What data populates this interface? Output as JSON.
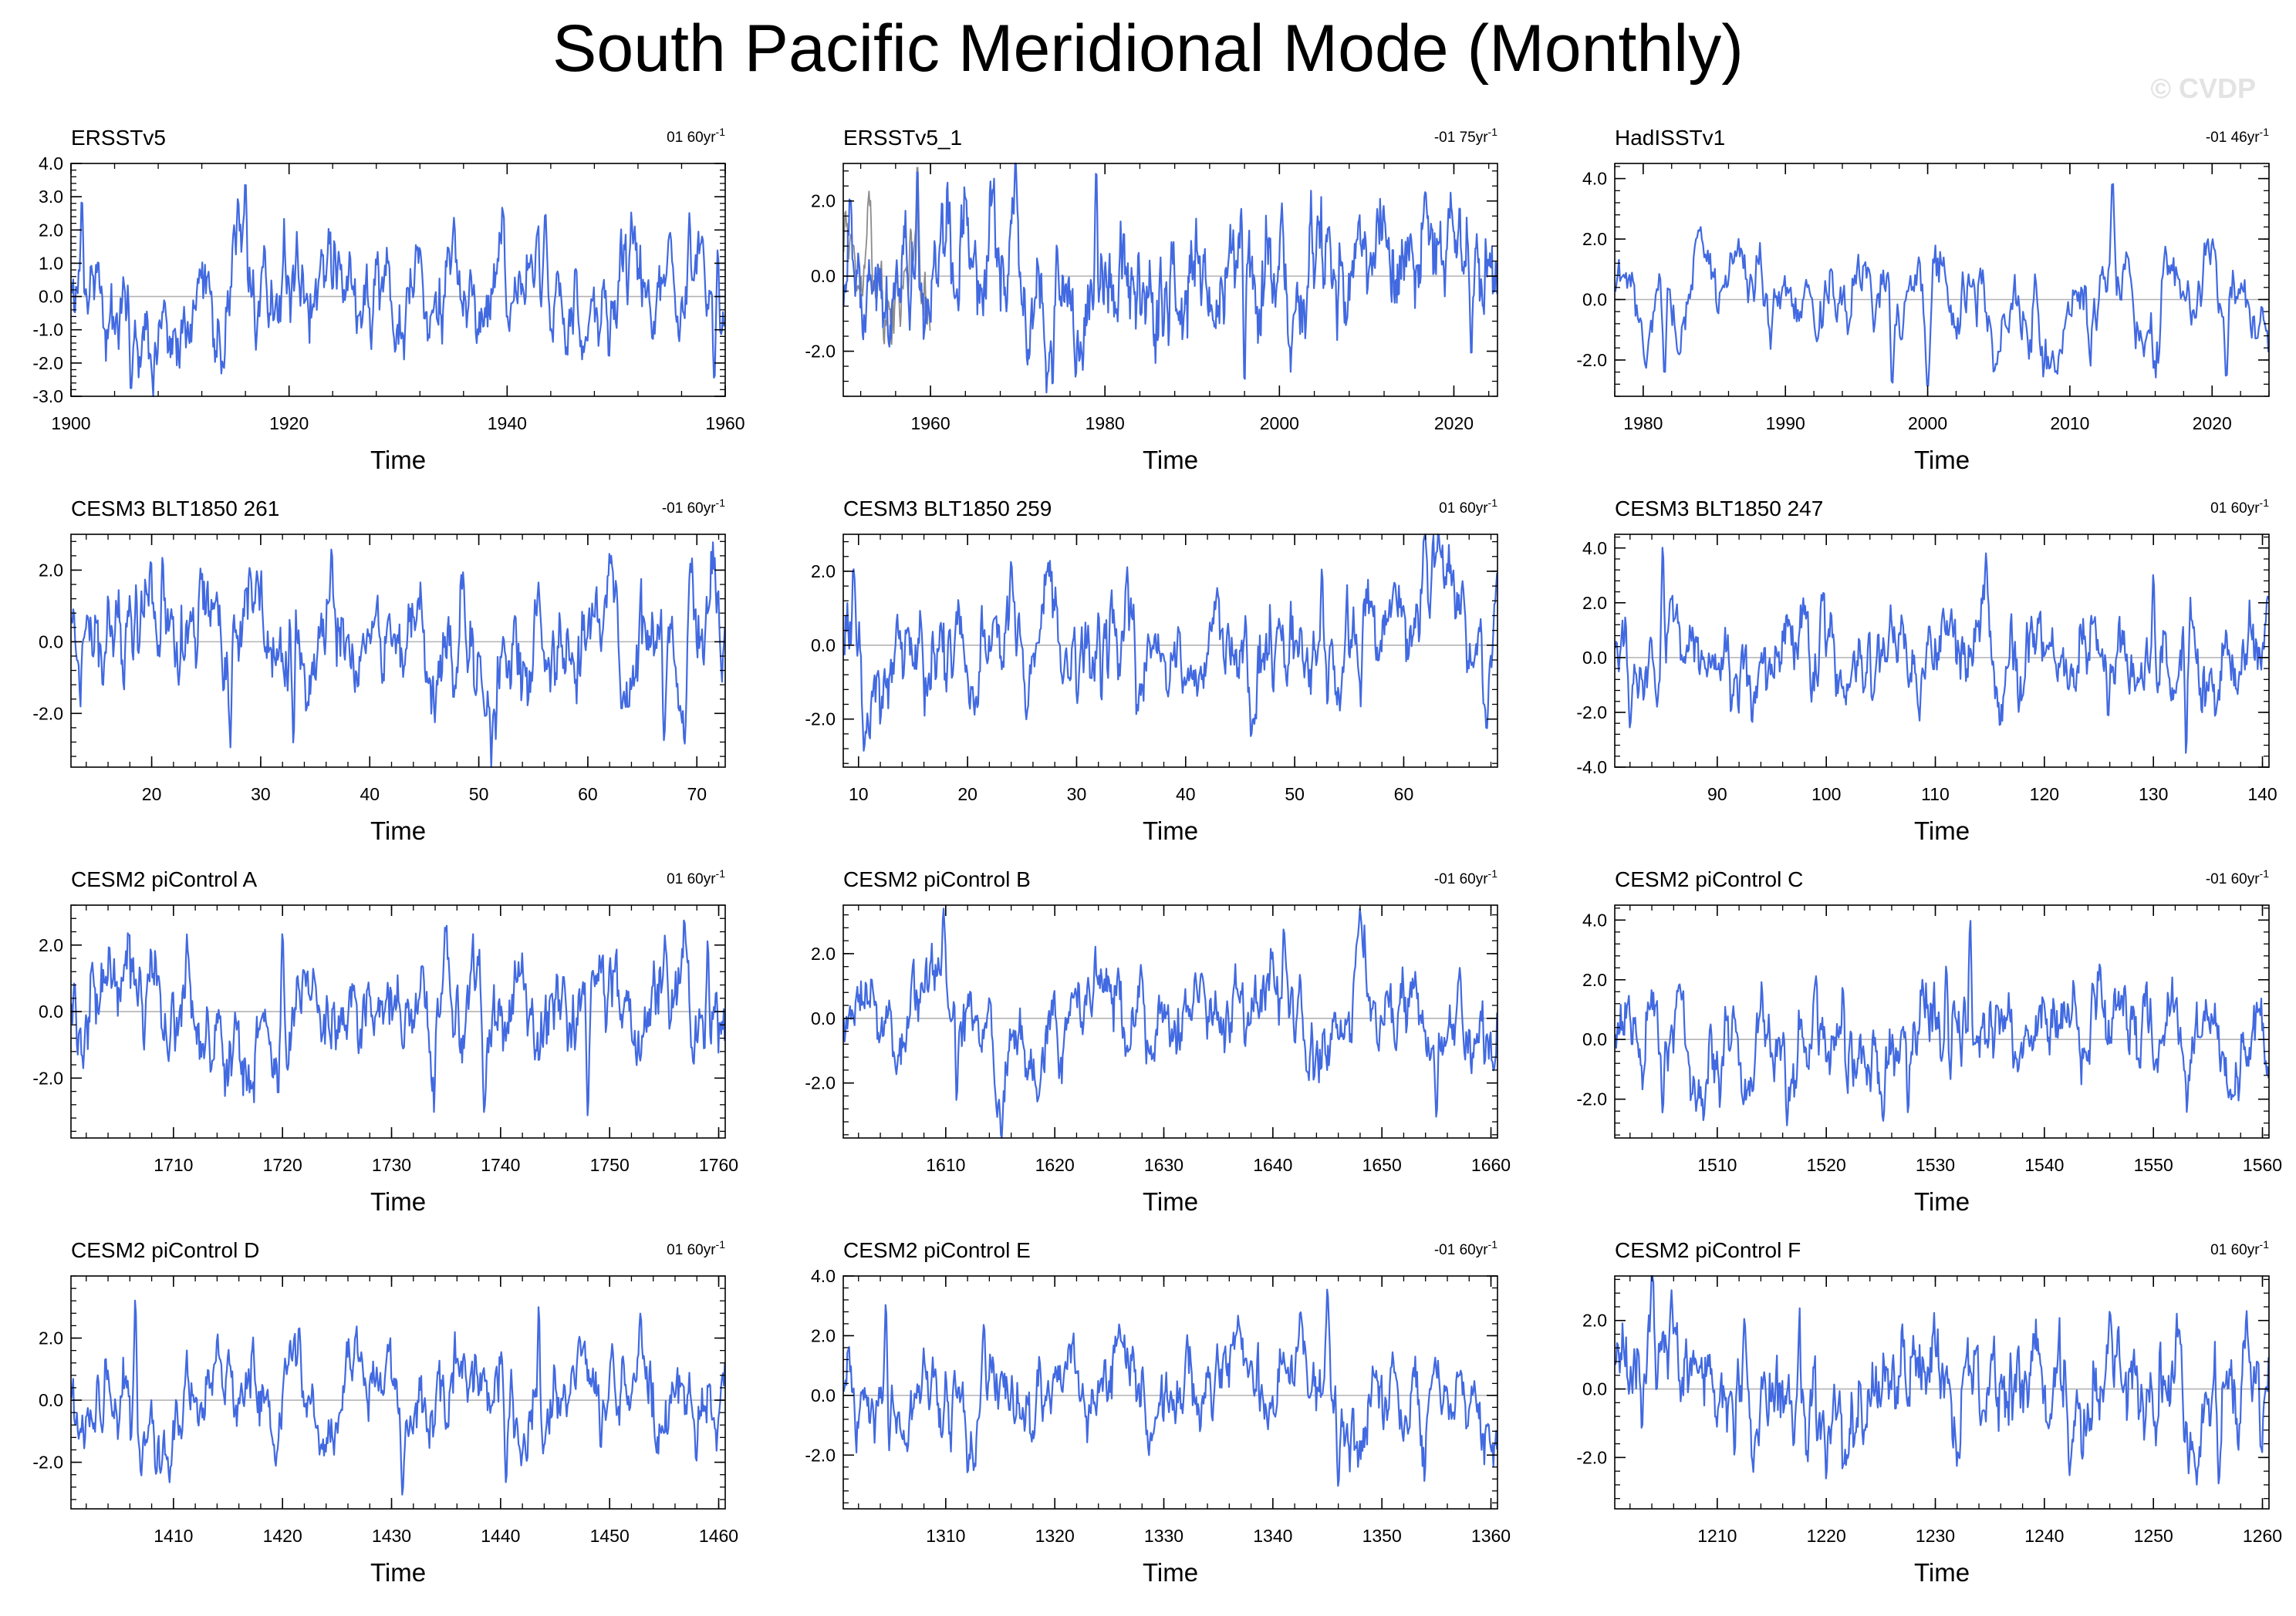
{
  "title": "South Pacific Meridional Mode (Monthly)",
  "watermark": "© CVDP",
  "colors": {
    "line": "#4169e1",
    "zero": "#b3b3b3",
    "frame": "#000000",
    "alt_line": "#8c8c8c"
  },
  "chart_data": [
    {
      "type": "line",
      "name": "ERSSTv5",
      "trend": "01 60yr",
      "trend_sup": "-1",
      "xlabel": "Time",
      "x_range": [
        1900,
        1960
      ],
      "xticks": [
        1900,
        1920,
        1940,
        1960
      ],
      "ylim": [
        -3.0,
        4.0
      ],
      "yticks": [
        -3.0,
        -2.0,
        -1.0,
        0.0,
        1.0,
        2.0,
        3.0,
        4.0
      ],
      "ytick_labels": [
        "-3.0",
        "-2.0",
        "-1.0",
        "0.0",
        "1.0",
        "2.0",
        "3.0",
        "4.0"
      ],
      "std": 1.0,
      "seed": 11,
      "spikes": [
        [
          1901.0,
          3.0
        ],
        [
          1916.0,
          3.5
        ],
        [
          1905.5,
          -2.9
        ],
        [
          1959.0,
          -2.6
        ],
        [
          1943.5,
          2.6
        ]
      ]
    },
    {
      "type": "line",
      "name": "ERSSTv5_1",
      "trend": "-01 75yr",
      "trend_sup": "-1",
      "xlabel": "Time",
      "x_range": [
        1950,
        2025
      ],
      "xticks": [
        1960,
        1980,
        2000,
        2020
      ],
      "ylim": [
        -3.2,
        3.0
      ],
      "yticks": [
        -2.0,
        0.0,
        2.0
      ],
      "ytick_labels": [
        "-2.0",
        "0.0",
        "2.0"
      ],
      "std": 1.0,
      "seed": 23,
      "secondary_range": [
        1950,
        1960
      ],
      "spikes": [
        [
          1958.5,
          3.0
        ],
        [
          1974.0,
          -3.0
        ],
        [
          1979.0,
          2.9
        ],
        [
          1996.0,
          -2.9
        ],
        [
          2022.0,
          -2.2
        ]
      ]
    },
    {
      "type": "line",
      "name": "HadISSTv1",
      "trend": "-01 46yr",
      "trend_sup": "-1",
      "xlabel": "Time",
      "x_range": [
        1978,
        2024
      ],
      "xticks": [
        1980,
        1990,
        2000,
        2010,
        2020
      ],
      "ylim": [
        -3.2,
        4.5
      ],
      "yticks": [
        -2.0,
        0.0,
        2.0,
        4.0
      ],
      "ytick_labels": [
        "-2.0",
        "0.0",
        "2.0",
        "4.0"
      ],
      "std": 1.0,
      "seed": 37,
      "spikes": [
        [
          1981.5,
          -2.6
        ],
        [
          2013.0,
          4.0
        ],
        [
          1997.5,
          -2.9
        ],
        [
          2000.0,
          -3.0
        ],
        [
          2021.0,
          -2.7
        ]
      ]
    },
    {
      "type": "line",
      "name": "CESM3 BLT1850 261",
      "trend": "-01 60yr",
      "trend_sup": "-1",
      "xlabel": "Time",
      "x_range": [
        12.6,
        72.6
      ],
      "xticks": [
        20,
        30,
        40,
        50,
        60,
        70
      ],
      "ylim": [
        -3.5,
        3.0
      ],
      "yticks": [
        -2.0,
        0.0,
        2.0
      ],
      "ytick_labels": [
        "-2.0",
        "0.0",
        "2.0"
      ],
      "std": 1.0,
      "seed": 41,
      "spikes": [
        [
          36.5,
          2.6
        ],
        [
          33.0,
          -2.9
        ],
        [
          67.0,
          -2.8
        ],
        [
          21.0,
          2.4
        ]
      ]
    },
    {
      "type": "line",
      "name": "CESM3 BLT1850 259",
      "trend": "01 60yr",
      "trend_sup": "-1",
      "xlabel": "Time",
      "x_range": [
        8.6,
        68.6
      ],
      "xticks": [
        10,
        20,
        30,
        40,
        50,
        60
      ],
      "ylim": [
        -3.3,
        3.0
      ],
      "yticks": [
        -2.0,
        0.0,
        2.0
      ],
      "ytick_labels": [
        "-2.0",
        "0.0",
        "2.0"
      ],
      "std": 1.0,
      "seed": 53,
      "spikes": [
        [
          10.5,
          -2.9
        ],
        [
          24.0,
          2.3
        ],
        [
          46.0,
          -2.5
        ],
        [
          52.5,
          2.1
        ]
      ]
    },
    {
      "type": "line",
      "name": "CESM3 BLT1850 247",
      "trend": "01 60yr",
      "trend_sup": "-1",
      "xlabel": "Time",
      "x_range": [
        80.6,
        140.6
      ],
      "xticks": [
        90,
        100,
        110,
        120,
        130,
        140
      ],
      "ylim": [
        -4.0,
        4.5
      ],
      "yticks": [
        -4.0,
        -2.0,
        0.0,
        2.0,
        4.0
      ],
      "ytick_labels": [
        "-4.0",
        "-2.0",
        "0.0",
        "2.0",
        "4.0"
      ],
      "std": 1.0,
      "seed": 67,
      "spikes": [
        [
          85.0,
          4.1
        ],
        [
          133.0,
          -3.6
        ],
        [
          130.0,
          3.1
        ],
        [
          82.0,
          -2.6
        ]
      ]
    },
    {
      "type": "line",
      "name": "CESM2 piControl A",
      "trend": "01 60yr",
      "trend_sup": "-1",
      "xlabel": "Time",
      "x_range": [
        1700.6,
        1760.6
      ],
      "xticks": [
        1710,
        1720,
        1730,
        1740,
        1750,
        1760
      ],
      "ylim": [
        -3.8,
        3.2
      ],
      "yticks": [
        -2.0,
        0.0,
        2.0
      ],
      "ytick_labels": [
        "-2.0",
        "0.0",
        "2.0"
      ],
      "std": 1.0,
      "seed": 71,
      "spikes": [
        [
          1748.0,
          -3.2
        ],
        [
          1738.5,
          -3.1
        ],
        [
          1720.0,
          2.4
        ],
        [
          1759.0,
          2.2
        ]
      ]
    },
    {
      "type": "line",
      "name": "CESM2 piControl B",
      "trend": "-01 60yr",
      "trend_sup": "-1",
      "xlabel": "Time",
      "x_range": [
        1600.6,
        1660.6
      ],
      "xticks": [
        1610,
        1620,
        1630,
        1640,
        1650,
        1660
      ],
      "ylim": [
        -3.7,
        3.5
      ],
      "yticks": [
        -2.0,
        0.0,
        2.0
      ],
      "ytick_labels": [
        "-2.0",
        "0.0",
        "2.0"
      ],
      "std": 1.0,
      "seed": 83,
      "spikes": [
        [
          1609.8,
          3.4
        ],
        [
          1655.0,
          -3.1
        ],
        [
          1641.0,
          2.8
        ],
        [
          1611.0,
          -2.6
        ]
      ]
    },
    {
      "type": "line",
      "name": "CESM2 piControl C",
      "trend": "-01 60yr",
      "trend_sup": "-1",
      "xlabel": "Time",
      "x_range": [
        1500.6,
        1560.6
      ],
      "xticks": [
        1510,
        1520,
        1530,
        1540,
        1550,
        1560
      ],
      "ylim": [
        -3.3,
        4.5
      ],
      "yticks": [
        -2.0,
        0.0,
        2.0,
        4.0
      ],
      "ytick_labels": [
        "-2.0",
        "0.0",
        "2.0",
        "4.0"
      ],
      "std": 1.0,
      "seed": 97,
      "spikes": [
        [
          1533.2,
          4.1
        ],
        [
          1527.5,
          -2.5
        ],
        [
          1531.0,
          2.5
        ],
        [
          1505.0,
          -2.5
        ]
      ]
    },
    {
      "type": "line",
      "name": "CESM2 piControl D",
      "trend": "01 60yr",
      "trend_sup": "-1",
      "xlabel": "Time",
      "x_range": [
        1400.6,
        1460.6
      ],
      "xticks": [
        1410,
        1420,
        1430,
        1440,
        1450,
        1460
      ],
      "ylim": [
        -3.5,
        4.0
      ],
      "yticks": [
        -2.0,
        0.0,
        2.0
      ],
      "ytick_labels": [
        "-2.0",
        "0.0",
        "2.0"
      ],
      "std": 1.0,
      "seed": 101,
      "spikes": [
        [
          1406.5,
          3.3
        ],
        [
          1443.5,
          3.1
        ],
        [
          1431.0,
          -3.1
        ],
        [
          1440.5,
          -2.7
        ]
      ]
    },
    {
      "type": "line",
      "name": "CESM2 piControl E",
      "trend": "-01 60yr",
      "trend_sup": "-1",
      "xlabel": "Time",
      "x_range": [
        1300.6,
        1360.6
      ],
      "xticks": [
        1310,
        1320,
        1330,
        1340,
        1350,
        1360
      ],
      "ylim": [
        -3.8,
        4.0
      ],
      "yticks": [
        -2.0,
        0.0,
        2.0,
        4.0
      ],
      "ytick_labels": [
        "-2.0",
        "0.0",
        "2.0",
        "4.0"
      ],
      "std": 1.0,
      "seed": 113,
      "spikes": [
        [
          1304.5,
          3.1
        ],
        [
          1345.0,
          3.6
        ],
        [
          1346.0,
          -3.1
        ],
        [
          1313.5,
          2.4
        ]
      ]
    },
    {
      "type": "line",
      "name": "CESM2 piControl F",
      "trend": "01 60yr",
      "trend_sup": "-1",
      "xlabel": "Time",
      "x_range": [
        1200.6,
        1260.6
      ],
      "xticks": [
        1210,
        1220,
        1230,
        1240,
        1250,
        1260
      ],
      "ylim": [
        -3.5,
        3.3
      ],
      "yticks": [
        -2.0,
        0.0,
        2.0
      ],
      "ytick_labels": [
        "-2.0",
        "0.0",
        "2.0"
      ],
      "std": 1.0,
      "seed": 127,
      "spikes": [
        [
          1256.0,
          -2.8
        ],
        [
          1220.0,
          -2.7
        ],
        [
          1212.5,
          2.1
        ],
        [
          1246.0,
          2.3
        ]
      ]
    }
  ]
}
